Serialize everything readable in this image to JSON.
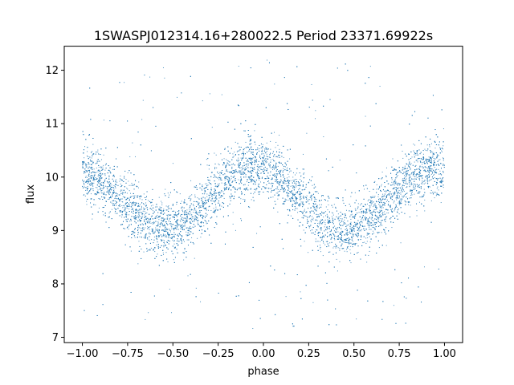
{
  "chart_data": {
    "type": "scatter",
    "title": "1SWASPJ012314.16+280022.5 Period 23371.69922s",
    "xlabel": "phase",
    "ylabel": "flux",
    "xlim": [
      -1.1,
      1.1
    ],
    "ylim": [
      6.9,
      12.45
    ],
    "xticks": [
      "−1.00",
      "−0.75",
      "−0.50",
      "−0.25",
      "0.00",
      "0.25",
      "0.50",
      "0.75",
      "1.00"
    ],
    "xtick_values": [
      -1.0,
      -0.75,
      -0.5,
      -0.25,
      0.0,
      0.25,
      0.5,
      0.75,
      1.0
    ],
    "yticks": [
      "7",
      "8",
      "9",
      "10",
      "11",
      "12"
    ],
    "ytick_values": [
      7,
      8,
      9,
      10,
      11,
      12
    ],
    "grid": false,
    "marker_color": "#1f77b4",
    "series": [
      {
        "x": [
          -1.0,
          -0.9,
          -0.8,
          -0.7,
          -0.6,
          -0.5,
          -0.4,
          -0.3,
          -0.2,
          -0.1,
          0.0,
          0.1,
          0.2,
          0.3,
          0.4,
          0.5,
          0.6,
          0.7,
          0.8,
          0.9,
          1.0
        ],
        "y": [
          10.05,
          9.95,
          9.65,
          9.3,
          9.05,
          9.0,
          9.2,
          9.55,
          9.95,
          10.2,
          10.2,
          9.95,
          9.6,
          9.25,
          9.0,
          9.0,
          9.25,
          9.6,
          9.95,
          10.15,
          10.15
        ]
      }
    ]
  }
}
